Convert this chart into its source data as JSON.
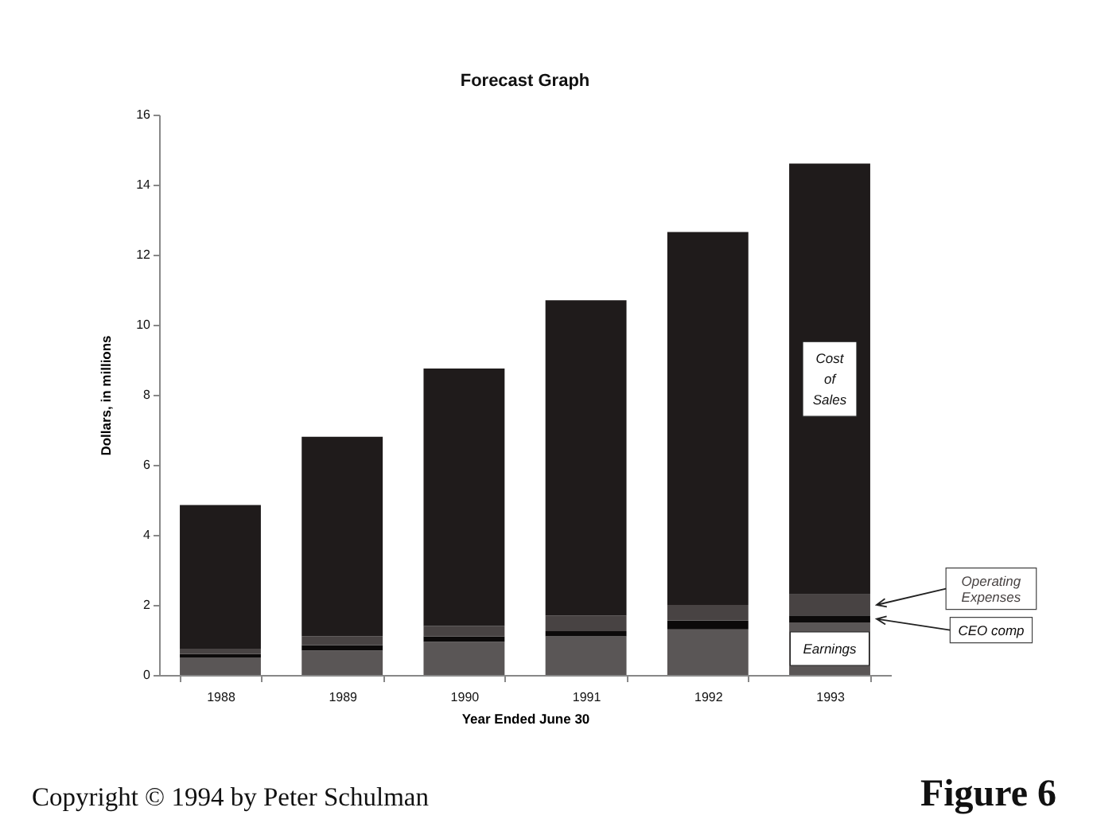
{
  "chart_data": {
    "type": "bar",
    "title": "Forecast Graph",
    "xlabel": "Year Ended June 30",
    "ylabel": "Dollars, in millions",
    "categories": [
      "1988",
      "1989",
      "1990",
      "1991",
      "1992",
      "1993"
    ],
    "series": [
      {
        "name": "Earnings",
        "color": "#5a5656",
        "values": [
          0.5,
          0.7,
          0.95,
          1.1,
          1.3,
          1.5
        ]
      },
      {
        "name": "CEO comp",
        "color": "#0c0a0a",
        "values": [
          0.1,
          0.15,
          0.15,
          0.15,
          0.25,
          0.2
        ]
      },
      {
        "name": "Operating Expenses",
        "color": "#484343",
        "values": [
          0.15,
          0.25,
          0.3,
          0.45,
          0.45,
          0.6
        ]
      },
      {
        "name": "Cost of Sales",
        "color": "#1f1b1b",
        "values": [
          4.1,
          5.7,
          7.35,
          9.0,
          10.65,
          12.3
        ]
      }
    ],
    "stacked": true,
    "ylim": [
      0,
      16
    ],
    "yticks": [
      0,
      2,
      4,
      6,
      8,
      10,
      12,
      14,
      16
    ],
    "grid": false,
    "legend": false,
    "annotations": [
      "Copyright © 1994 by Peter Schulman",
      "Figure 6"
    ]
  }
}
